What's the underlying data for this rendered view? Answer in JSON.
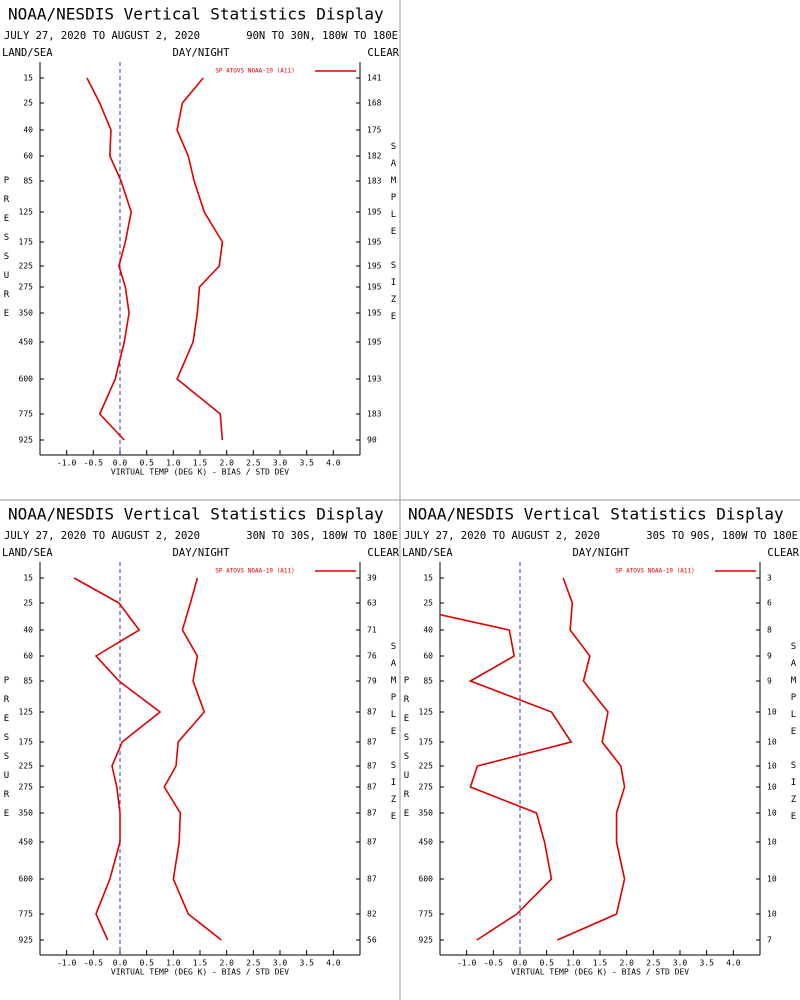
{
  "chart_data": [
    {
      "type": "line",
      "title": "NOAA/NESDIS Vertical Statistics Display",
      "date_range": "JULY 27, 2020 TO AUGUST 2, 2020",
      "region": "90N TO 30N, 180W TO 180E",
      "left_label": "LAND/SEA",
      "center_label": "DAY/NIGHT",
      "right_label": "CLEAR",
      "y_label": "PRESSURE",
      "y2_label": "SAMPLE SIZE",
      "x_label": "VIRTUAL TEMP (DEG K) - BIAS / STD DEV",
      "categories": [
        "15",
        "25",
        "40",
        "60",
        "85",
        "125",
        "175",
        "225",
        "275",
        "350",
        "450",
        "600",
        "775",
        "925"
      ],
      "series": [
        {
          "name": "SP ATOVS NOAA-19 (A11)",
          "color": "#dd0000",
          "values": [
            -0.62,
            -0.38,
            -0.17,
            -0.19,
            0.02,
            0.21,
            0.1,
            -0.02,
            0.1,
            0.17,
            0.08,
            -0.09,
            -0.38,
            0.08
          ]
        },
        {
          "color": "#dd0000",
          "values": [
            1.56,
            1.17,
            1.07,
            1.28,
            1.39,
            1.58,
            1.92,
            1.86,
            1.49,
            1.45,
            1.37,
            1.07,
            1.88,
            1.92
          ]
        }
      ],
      "sample_size": [
        "141",
        "168",
        "175",
        "182",
        "183",
        "195",
        "195",
        "195",
        "195",
        "195",
        "195",
        "193",
        "183",
        "90"
      ],
      "xlim": [
        -1.5,
        4.5
      ],
      "xticks": [
        {
          "value": -1,
          "label": "-1.0"
        },
        {
          "value": -0.5,
          "label": "-0.5"
        },
        {
          "value": 0,
          "label": "0.0"
        },
        {
          "value": 0.5,
          "label": "0.5"
        },
        {
          "value": 1,
          "label": "1.0"
        },
        {
          "value": 1.5,
          "label": "1.5"
        },
        {
          "value": 2,
          "label": "2.0"
        },
        {
          "value": 2.5,
          "label": "2.5"
        },
        {
          "value": 3,
          "label": "3.0"
        },
        {
          "value": 3.5,
          "label": "3.5"
        },
        {
          "value": 4,
          "label": "4.0"
        }
      ],
      "zero_line": true,
      "legend": "upper right"
    },
    {
      "type": "line",
      "title": "NOAA/NESDIS Vertical Statistics Display",
      "date_range": "JULY 27, 2020 TO AUGUST 2, 2020",
      "region": "30N TO 30S, 180W TO 180E",
      "left_label": "LAND/SEA",
      "center_label": "DAY/NIGHT",
      "right_label": "CLEAR",
      "y_label": "PRESSURE",
      "y2_label": "SAMPLE SIZE",
      "x_label": "VIRTUAL TEMP (DEG K) - BIAS / STD DEV",
      "categories": [
        "15",
        "25",
        "40",
        "60",
        "85",
        "125",
        "175",
        "225",
        "275",
        "350",
        "450",
        "600",
        "775",
        "925"
      ],
      "series": [
        {
          "name": "SP ATOVS NOAA-19 (A11)",
          "color": "#dd0000",
          "values": [
            -0.86,
            -0.02,
            0.36,
            -0.45,
            -0.02,
            0.75,
            0.04,
            -0.15,
            -0.06,
            0,
            0,
            -0.19,
            -0.45,
            -0.23
          ]
        },
        {
          "color": "#dd0000",
          "values": [
            1.45,
            1.32,
            1.17,
            1.45,
            1.37,
            1.58,
            1.09,
            1.05,
            0.83,
            1.13,
            1.11,
            1.0,
            1.28,
            1.9
          ]
        }
      ],
      "sample_size": [
        "39",
        "63",
        "71",
        "76",
        "79",
        "87",
        "87",
        "87",
        "87",
        "87",
        "87",
        "87",
        "82",
        "56"
      ],
      "xlim": [
        -1.5,
        4.5
      ],
      "xticks": [
        {
          "value": -1,
          "label": "-1.0"
        },
        {
          "value": -0.5,
          "label": "-0.5"
        },
        {
          "value": 0,
          "label": "0.0"
        },
        {
          "value": 0.5,
          "label": "0.5"
        },
        {
          "value": 1,
          "label": "1.0"
        },
        {
          "value": 1.5,
          "label": "1.5"
        },
        {
          "value": 2,
          "label": "2.0"
        },
        {
          "value": 2.5,
          "label": "2.5"
        },
        {
          "value": 3,
          "label": "3.0"
        },
        {
          "value": 3.5,
          "label": "3.5"
        },
        {
          "value": 4,
          "label": "4.0"
        }
      ],
      "zero_line": true,
      "legend": "upper right"
    },
    {
      "type": "line",
      "title": "NOAA/NESDIS Vertical Statistics Display",
      "date_range": "JULY 27, 2020 TO AUGUST 2, 2020",
      "region": "30S TO 90S, 180W TO 180E",
      "left_label": "LAND/SEA",
      "center_label": "DAY/NIGHT",
      "right_label": "CLEAR",
      "y_label": "PRESSURE",
      "y2_label": "SAMPLE SIZE",
      "x_label": "VIRTUAL TEMP (DEG K) - BIAS / STD DEV",
      "categories": [
        "15",
        "25",
        "40",
        "60",
        "85",
        "125",
        "175",
        "225",
        "275",
        "350",
        "450",
        "600",
        "775",
        "925"
      ],
      "series": [
        {
          "name": "SP ATOVS NOAA-19 (A11)",
          "color": "#dd0000",
          "values": [
            -3.0,
            -2.5,
            -0.2,
            -0.11,
            -0.93,
            0.59,
            0.96,
            -0.8,
            -0.93,
            0.31,
            0.46,
            0.59,
            -0.06,
            -0.81
          ]
        },
        {
          "color": "#dd0000",
          "values": [
            0.81,
            0.98,
            0.94,
            1.31,
            1.19,
            1.65,
            1.54,
            1.89,
            1.96,
            1.81,
            1.81,
            1.96,
            1.81,
            0.7
          ]
        }
      ],
      "sample_size": [
        "3",
        "6",
        "8",
        "9",
        "9",
        "10",
        "10",
        "10",
        "10",
        "10",
        "10",
        "10",
        "10",
        "7"
      ],
      "xlim": [
        -1.5,
        4.5
      ],
      "xticks": [
        {
          "value": -1,
          "label": "-1.0"
        },
        {
          "value": -0.5,
          "label": "-0.5"
        },
        {
          "value": 0,
          "label": "0.0"
        },
        {
          "value": 0.5,
          "label": "0.5"
        },
        {
          "value": 1,
          "label": "1.0"
        },
        {
          "value": 1.5,
          "label": "1.5"
        },
        {
          "value": 2,
          "label": "2.0"
        },
        {
          "value": 2.5,
          "label": "2.5"
        },
        {
          "value": 3,
          "label": "3.0"
        },
        {
          "value": 3.5,
          "label": "3.5"
        },
        {
          "value": 4,
          "label": "4.0"
        }
      ],
      "zero_line": true,
      "legend": "upper right"
    }
  ]
}
